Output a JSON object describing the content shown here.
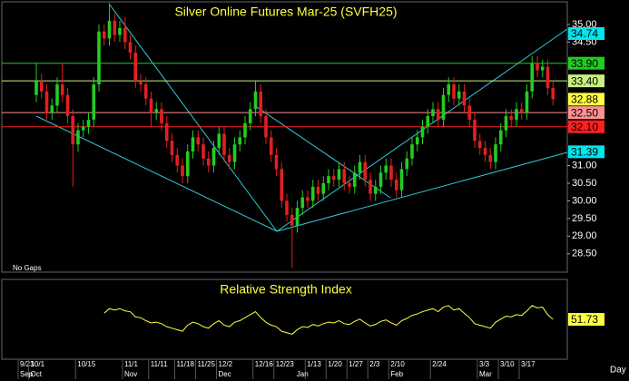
{
  "chart_data": {
    "type": "candlestick",
    "title": "Silver Online Futures Mar-25 (SVFH25)",
    "note": "No Gaps",
    "x_unit_label": "Day",
    "up_color": "#22cc22",
    "down_color": "#e02020",
    "categories": [
      "9/23",
      null,
      "10/1",
      null,
      null,
      null,
      null,
      null,
      null,
      null,
      null,
      "10/15",
      null,
      null,
      null,
      null,
      null,
      null,
      null,
      null,
      "11/1",
      null,
      null,
      null,
      null,
      "11/11",
      null,
      null,
      null,
      null,
      "11/18",
      null,
      null,
      null,
      "11/25",
      null,
      null,
      null,
      "12/2",
      null,
      null,
      null,
      null,
      null,
      null,
      "12/16",
      null,
      null,
      null,
      "12/23",
      null,
      null,
      null,
      null,
      null,
      "1/13",
      null,
      null,
      null,
      "1/20",
      null,
      null,
      null,
      "1/27",
      null,
      null,
      null,
      "2/3",
      null,
      null,
      null,
      "2/10",
      null,
      null,
      null,
      null,
      null,
      null,
      null,
      "2/24",
      null,
      null,
      null,
      null,
      null,
      null,
      null,
      null,
      "3/3",
      null,
      null,
      null,
      "3/10",
      null,
      null,
      null,
      "3/17",
      null,
      null,
      null
    ],
    "months": [
      "Sep",
      null,
      "Oct",
      null,
      null,
      null,
      null,
      null,
      null,
      null,
      null,
      null,
      null,
      null,
      null,
      null,
      null,
      null,
      null,
      null,
      "Nov",
      null,
      null,
      null,
      null,
      null,
      null,
      null,
      null,
      null,
      null,
      null,
      null,
      null,
      null,
      null,
      null,
      null,
      "Dec",
      null,
      null,
      null,
      null,
      null,
      null,
      null,
      null,
      null,
      null,
      null,
      null,
      null,
      null,
      "Jan",
      null,
      null,
      null,
      null,
      null,
      null,
      null,
      null,
      null,
      null,
      null,
      null,
      null,
      null,
      null,
      null,
      null,
      "Feb",
      null,
      null,
      null,
      null,
      null,
      null,
      null,
      null,
      null,
      null,
      null,
      null,
      null,
      null,
      null,
      null,
      "Mar",
      null,
      null,
      null,
      null,
      null,
      null,
      null,
      null,
      null,
      null,
      null
    ],
    "open": [
      33.0,
      33.4,
      33.1,
      32.5,
      32.7,
      33.3,
      33.0,
      32.4,
      31.6,
      32.0,
      32.1,
      32.3,
      33.3,
      34.8,
      34.6,
      35.1,
      34.7,
      34.9,
      34.5,
      34.2,
      33.4,
      33.3,
      32.9,
      32.5,
      32.6,
      32.2,
      31.7,
      31.3,
      31.0,
      30.7,
      31.4,
      31.8,
      31.6,
      31.2,
      31.0,
      31.5,
      31.9,
      31.3,
      31.1,
      31.6,
      31.8,
      32.2,
      32.6,
      33.1,
      32.4,
      31.8,
      31.3,
      30.9,
      30.0,
      29.6,
      29.3,
      29.8,
      30.1,
      30.0,
      30.4,
      30.2,
      30.5,
      30.7,
      30.6,
      30.9,
      30.5,
      30.4,
      30.8,
      31.1,
      30.6,
      30.2,
      30.4,
      30.8,
      31.0,
      30.6,
      30.3,
      30.9,
      31.2,
      31.6,
      31.8,
      32.1,
      32.4,
      32.6,
      32.3,
      33.0,
      33.3,
      32.9,
      33.1,
      32.7,
      32.3,
      31.7,
      31.5,
      31.3,
      31.1,
      31.6,
      32.0,
      32.4,
      32.3,
      32.6,
      32.5,
      33.1,
      33.9,
      33.7,
      33.8,
      33.2
    ],
    "high": [
      33.9,
      33.6,
      33.3,
      32.9,
      33.5,
      33.9,
      33.2,
      32.6,
      32.2,
      32.3,
      32.5,
      33.5,
      35.0,
      35.0,
      35.6,
      35.3,
      35.1,
      35.2,
      34.7,
      34.4,
      33.6,
      33.5,
      33.1,
      32.8,
      32.8,
      32.4,
      31.9,
      31.5,
      31.2,
      31.6,
      32.0,
      32.0,
      31.8,
      31.4,
      31.7,
      32.1,
      32.1,
      31.5,
      31.8,
      32.0,
      32.4,
      32.8,
      33.4,
      33.3,
      32.6,
      32.0,
      31.5,
      31.1,
      30.2,
      29.8,
      30.0,
      30.3,
      30.3,
      30.6,
      30.6,
      30.7,
      30.9,
      30.9,
      31.1,
      31.1,
      30.7,
      31.0,
      31.3,
      31.3,
      30.8,
      30.6,
      31.0,
      31.2,
      31.2,
      30.8,
      31.1,
      31.4,
      31.8,
      32.0,
      32.3,
      32.6,
      32.8,
      32.8,
      33.2,
      33.5,
      33.5,
      33.3,
      33.3,
      32.9,
      32.5,
      31.9,
      31.7,
      31.5,
      31.8,
      32.2,
      32.6,
      32.6,
      32.8,
      32.8,
      33.3,
      34.1,
      34.1,
      34.0,
      34.0,
      33.4
    ],
    "low": [
      32.8,
      32.9,
      32.3,
      32.3,
      32.5,
      32.8,
      32.2,
      30.4,
      31.4,
      31.8,
      31.9,
      32.1,
      33.1,
      34.4,
      34.4,
      34.5,
      34.5,
      34.3,
      34.0,
      33.2,
      33.1,
      32.7,
      32.1,
      32.3,
      32.0,
      31.5,
      31.1,
      30.8,
      30.5,
      30.5,
      31.2,
      31.4,
      31.0,
      30.8,
      30.8,
      31.3,
      31.1,
      30.9,
      30.9,
      31.4,
      31.6,
      32.0,
      32.4,
      32.2,
      31.6,
      31.1,
      30.7,
      29.8,
      29.4,
      28.1,
      29.1,
      29.6,
      29.8,
      29.8,
      30.0,
      30.0,
      30.3,
      30.4,
      30.4,
      30.3,
      30.2,
      30.2,
      30.6,
      30.4,
      30.0,
      30.0,
      30.2,
      30.6,
      30.4,
      30.1,
      30.1,
      30.7,
      31.0,
      31.4,
      31.6,
      31.9,
      32.2,
      32.1,
      32.1,
      32.8,
      32.7,
      32.7,
      32.5,
      32.1,
      31.5,
      31.3,
      31.1,
      30.9,
      30.9,
      31.4,
      31.8,
      32.1,
      32.1,
      32.3,
      32.3,
      32.9,
      33.5,
      33.5,
      33.0,
      32.7
    ],
    "close": [
      33.4,
      33.1,
      32.5,
      32.7,
      33.3,
      33.0,
      32.4,
      31.6,
      32.0,
      32.1,
      32.3,
      33.3,
      34.8,
      34.6,
      35.1,
      34.7,
      34.9,
      34.5,
      34.2,
      33.4,
      33.3,
      32.9,
      32.5,
      32.6,
      32.2,
      31.7,
      31.3,
      31.0,
      30.7,
      31.4,
      31.8,
      31.6,
      31.2,
      31.0,
      31.5,
      31.9,
      31.3,
      31.1,
      31.6,
      31.8,
      32.2,
      32.6,
      33.1,
      32.4,
      31.8,
      31.3,
      30.9,
      30.0,
      29.6,
      29.3,
      29.8,
      30.1,
      30.0,
      30.4,
      30.2,
      30.5,
      30.7,
      30.6,
      30.9,
      30.5,
      30.4,
      30.8,
      31.1,
      30.6,
      30.2,
      30.4,
      30.8,
      31.0,
      30.6,
      30.3,
      30.9,
      31.2,
      31.6,
      31.8,
      32.1,
      32.4,
      32.6,
      32.3,
      33.0,
      33.3,
      32.9,
      33.1,
      32.7,
      32.3,
      31.7,
      31.5,
      31.3,
      31.1,
      31.6,
      32.0,
      32.4,
      32.3,
      32.6,
      32.5,
      33.1,
      33.9,
      33.7,
      33.8,
      33.2,
      32.88
    ],
    "ylim": [
      27.98,
      35.64
    ],
    "yticks": [
      {
        "value": 35,
        "label": "35.00"
      },
      {
        "value": 34.5,
        "label": "34.50"
      },
      {
        "value": 31,
        "label": "31.00"
      },
      {
        "value": 30.5,
        "label": "30.50"
      },
      {
        "value": 30,
        "label": "30.00"
      },
      {
        "value": 29.5,
        "label": "29.50"
      },
      {
        "value": 29,
        "label": "29.00"
      },
      {
        "value": 28.5,
        "label": "28.50"
      }
    ],
    "levels": [
      {
        "value": 34.74,
        "color": "#00e5ee",
        "line": false
      },
      {
        "value": 33.9,
        "label": "33.90",
        "color": "#22cc22",
        "line": true
      },
      {
        "value": 33.4,
        "label": "33.40",
        "color": "#c8f080",
        "line": true
      },
      {
        "value": 32.88,
        "color": "#ffff40",
        "line": false
      },
      {
        "value": 32.5,
        "label": "32.50",
        "color": "#ff9090",
        "line": true
      },
      {
        "value": 32.1,
        "label": "32.10",
        "color": "#ff2020",
        "line": true
      },
      {
        "value": 31.39,
        "color": "#00e5ee",
        "line": false
      }
    ],
    "rsi": {
      "title": "Relative Strength Index",
      "color": "#ffff40",
      "ylim": [
        0,
        100
      ],
      "values": [
        null,
        null,
        null,
        null,
        null,
        null,
        null,
        null,
        null,
        null,
        null,
        null,
        null,
        60,
        66,
        64,
        66,
        63,
        62,
        55,
        54,
        50,
        47,
        48,
        46,
        42,
        40,
        38,
        36,
        44,
        48,
        46,
        42,
        40,
        46,
        50,
        44,
        42,
        48,
        50,
        54,
        58,
        62,
        54,
        48,
        44,
        42,
        36,
        34,
        32,
        38,
        42,
        41,
        45,
        43,
        46,
        48,
        47,
        50,
        46,
        45,
        49,
        52,
        47,
        43,
        45,
        49,
        51,
        47,
        44,
        50,
        53,
        57,
        59,
        62,
        64,
        66,
        62,
        68,
        70,
        64,
        66,
        60,
        54,
        46,
        44,
        42,
        40,
        48,
        52,
        56,
        55,
        58,
        57,
        63,
        70,
        67,
        68,
        58,
        51.73
      ]
    }
  }
}
